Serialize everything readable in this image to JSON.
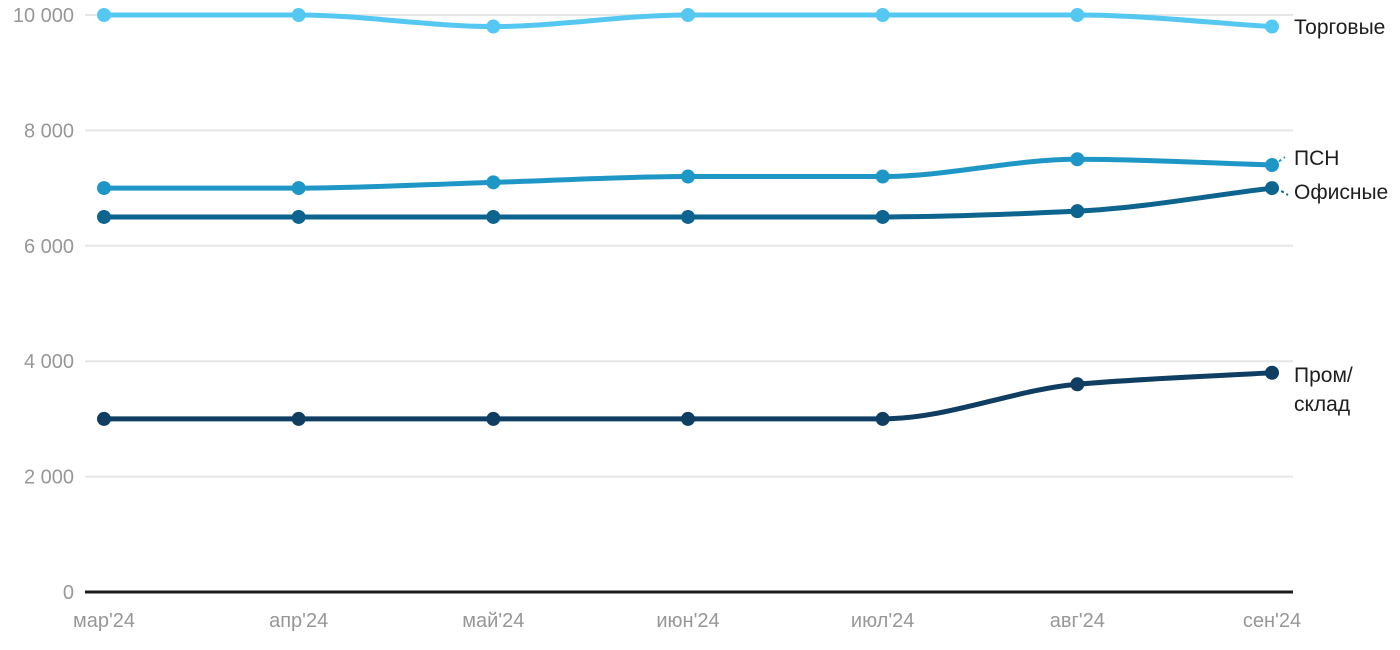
{
  "chart_data": {
    "type": "line",
    "title": "",
    "xlabel": "",
    "ylabel": "",
    "categories": [
      "мар'24",
      "апр'24",
      "май'24",
      "июн'24",
      "июл'24",
      "авг'24",
      "сен'24"
    ],
    "series": [
      {
        "name": "Торговые",
        "label_lines": [
          "Торговые"
        ],
        "color": "#55C8F2",
        "values": [
          10000,
          10000,
          9800,
          10000,
          10000,
          10000,
          9800
        ]
      },
      {
        "name": "ПСН",
        "label_lines": [
          "ПСН"
        ],
        "color": "#1F97C6",
        "values": [
          7000,
          7000,
          7100,
          7200,
          7200,
          7500,
          7400
        ]
      },
      {
        "name": "Офисные",
        "label_lines": [
          "Офисные"
        ],
        "color": "#0C648F",
        "values": [
          6500,
          6500,
          6500,
          6500,
          6500,
          6600,
          7000
        ]
      },
      {
        "name": "Пром/склад",
        "label_lines": [
          "Пром/",
          "склад"
        ],
        "color": "#0F3E62",
        "values": [
          3000,
          3000,
          3000,
          3000,
          3000,
          3600,
          3800
        ]
      }
    ],
    "y_axis": {
      "range": [
        0,
        10000
      ],
      "ticks": [
        0,
        2000,
        4000,
        6000,
        8000,
        10000
      ],
      "tick_labels": [
        "0",
        "2 000",
        "4 000",
        "6 000",
        "8 000",
        "10 000"
      ]
    },
    "grid": true,
    "legend_position": "right-inline-labels",
    "colors": {
      "axis_line": "#1C1C1C",
      "grid_line": "#E6E6E6",
      "tick_label": "#979797",
      "series_label": "#1E1E1E",
      "background": "#FFFFFF"
    }
  }
}
